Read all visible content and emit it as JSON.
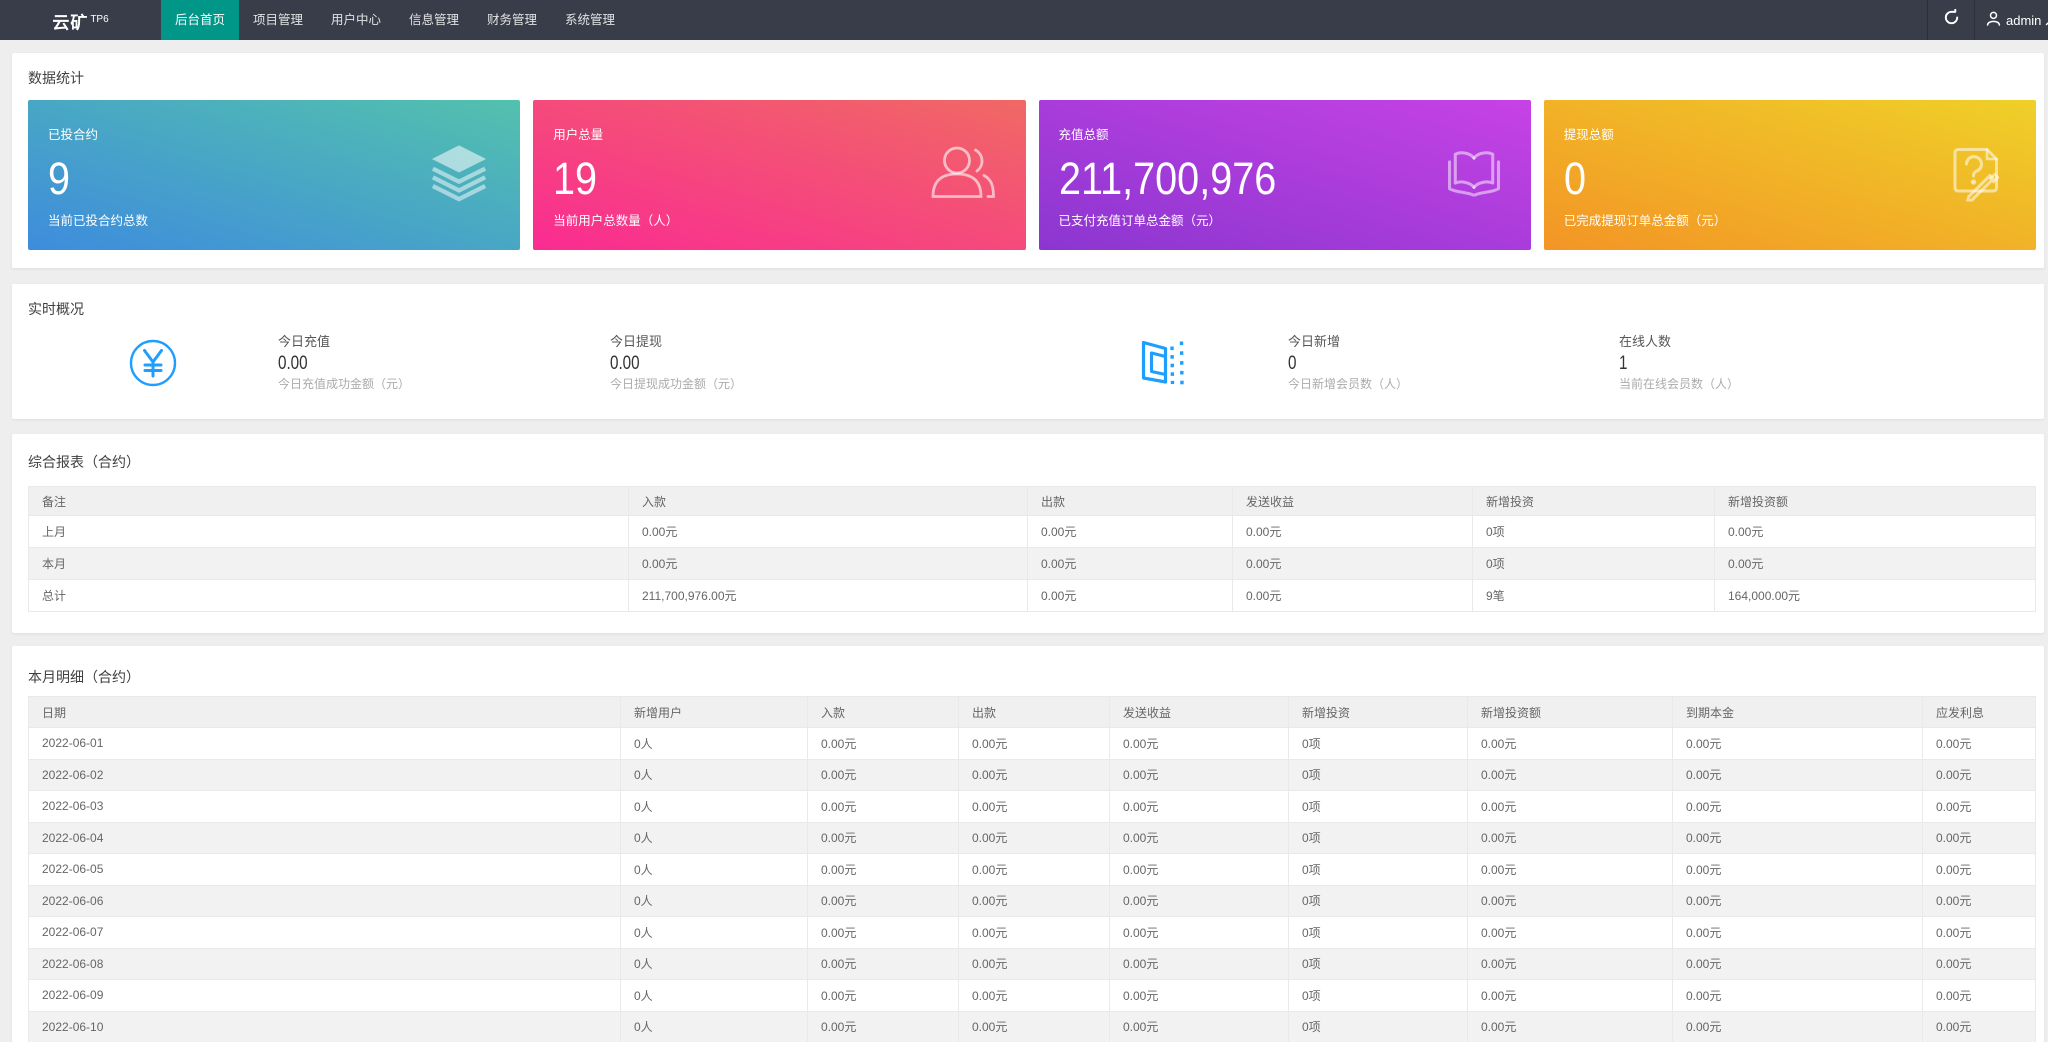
{
  "navbar": {
    "logo": "云矿",
    "logo_sup": "TP6",
    "menu": [
      {
        "label": "后台首页",
        "active": true
      },
      {
        "label": "项目管理",
        "active": false
      },
      {
        "label": "用户中心",
        "active": false
      },
      {
        "label": "信息管理",
        "active": false
      },
      {
        "label": "财务管理",
        "active": false
      },
      {
        "label": "系统管理",
        "active": false
      }
    ],
    "username": "admin",
    "icons": [
      "refresh-icon",
      "user-icon",
      "caret-up-icon"
    ],
    "active_color": "#009688",
    "bg_color": "#393D49"
  },
  "stats_panel": {
    "title": "数据统计",
    "cards": [
      {
        "label": "已投合约",
        "value": "9",
        "desc": "当前已投合约总数",
        "icon": "layers-icon",
        "gradient_from": "#3E8CDD",
        "gradient_to": "#53C1AD"
      },
      {
        "label": "用户总量",
        "value": "19",
        "desc": "当前用户总数量（人）",
        "icon": "users-icon",
        "gradient_from": "#FA2B92",
        "gradient_to": "#F06964"
      },
      {
        "label": "充值总额",
        "value": "211,700,976",
        "desc": "已支付充值订单总金额（元）",
        "icon": "book-icon",
        "gradient_from": "#8B36D0",
        "gradient_to": "#C742E5"
      },
      {
        "label": "提现总额",
        "value": "0",
        "desc": "已完成提现订单总金额（元）",
        "icon": "doc-question-icon",
        "gradient_from": "#F39526",
        "gradient_to": "#EFD028"
      }
    ]
  },
  "realtime_panel": {
    "title": "实时概况",
    "icon_color": "#1E9FFF",
    "icons": [
      "yen-circle-icon",
      "door-icon"
    ],
    "items": [
      {
        "label": "今日充值",
        "value": "0.00",
        "desc": "今日充值成功金额（元）"
      },
      {
        "label": "今日提现",
        "value": "0.00",
        "desc": "今日提现成功金额（元）"
      },
      {
        "label": "今日新增",
        "value": "0",
        "desc": "今日新增会员数（人）"
      },
      {
        "label": "在线人数",
        "value": "1",
        "desc": "当前在线会员数（人）"
      }
    ]
  },
  "summary_panel": {
    "title": "综合报表（合约）",
    "columns": [
      "备注",
      "入款",
      "出款",
      "发送收益",
      "新增投资",
      "新增投资额"
    ],
    "rows": [
      [
        "上月",
        "0.00元",
        "0.00元",
        "0.00元",
        "0项",
        "0.00元"
      ],
      [
        "本月",
        "0.00元",
        "0.00元",
        "0.00元",
        "0项",
        "0.00元"
      ],
      [
        "总计",
        "211,700,976.00元",
        "0.00元",
        "0.00元",
        "9笔",
        "164,000.00元"
      ]
    ]
  },
  "detail_panel": {
    "title": "本月明细（合约）",
    "columns": [
      "日期",
      "新增用户",
      "入款",
      "出款",
      "发送收益",
      "新增投资",
      "新增投资额",
      "到期本金",
      "应发利息"
    ],
    "rows": [
      [
        "2022-06-01",
        "0人",
        "0.00元",
        "0.00元",
        "0.00元",
        "0项",
        "0.00元",
        "0.00元",
        "0.00元"
      ],
      [
        "2022-06-02",
        "0人",
        "0.00元",
        "0.00元",
        "0.00元",
        "0项",
        "0.00元",
        "0.00元",
        "0.00元"
      ],
      [
        "2022-06-03",
        "0人",
        "0.00元",
        "0.00元",
        "0.00元",
        "0项",
        "0.00元",
        "0.00元",
        "0.00元"
      ],
      [
        "2022-06-04",
        "0人",
        "0.00元",
        "0.00元",
        "0.00元",
        "0项",
        "0.00元",
        "0.00元",
        "0.00元"
      ],
      [
        "2022-06-05",
        "0人",
        "0.00元",
        "0.00元",
        "0.00元",
        "0项",
        "0.00元",
        "0.00元",
        "0.00元"
      ],
      [
        "2022-06-06",
        "0人",
        "0.00元",
        "0.00元",
        "0.00元",
        "0项",
        "0.00元",
        "0.00元",
        "0.00元"
      ],
      [
        "2022-06-07",
        "0人",
        "0.00元",
        "0.00元",
        "0.00元",
        "0项",
        "0.00元",
        "0.00元",
        "0.00元"
      ],
      [
        "2022-06-08",
        "0人",
        "0.00元",
        "0.00元",
        "0.00元",
        "0项",
        "0.00元",
        "0.00元",
        "0.00元"
      ],
      [
        "2022-06-09",
        "0人",
        "0.00元",
        "0.00元",
        "0.00元",
        "0项",
        "0.00元",
        "0.00元",
        "0.00元"
      ],
      [
        "2022-06-10",
        "0人",
        "0.00元",
        "0.00元",
        "0.00元",
        "0项",
        "0.00元",
        "0.00元",
        "0.00元"
      ]
    ]
  }
}
